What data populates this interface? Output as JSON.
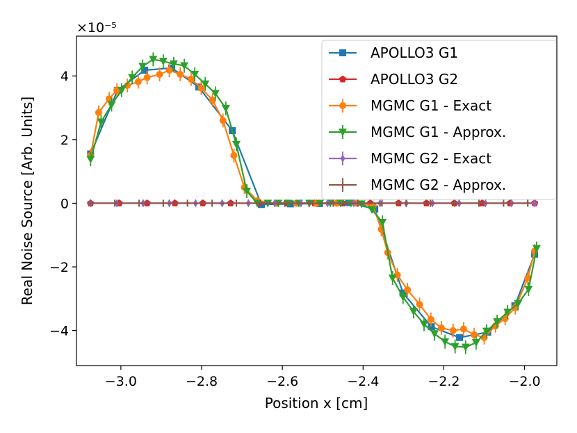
{
  "chart_data": {
    "type": "line",
    "title": "",
    "xlabel": "Position x [cm]",
    "ylabel": "Real Noise Source [Arb. Units]",
    "xlim": [
      -3.11,
      -1.92
    ],
    "ylim": [
      -5.1,
      5.25
    ],
    "xticks": [
      -3.0,
      -2.8,
      -2.6,
      -2.4,
      -2.2,
      -2.0
    ],
    "xtick_labels": [
      "−3.0",
      "−2.8",
      "−2.6",
      "−2.4",
      "−2.2",
      "−2.0"
    ],
    "yticks": [
      -4,
      -2,
      0,
      2,
      4
    ],
    "ytick_labels": [
      "−4",
      "−2",
      "0",
      "2",
      "4"
    ],
    "y_scale_label": "×10⁻⁵",
    "grid": false,
    "legend_position": "top-right",
    "series": [
      {
        "name": "APOLLO3 G1",
        "color": "#1f77b4",
        "marker": "square",
        "x": [
          -3.075,
          -3.008,
          -2.941,
          -2.874,
          -2.807,
          -2.724,
          -2.652,
          -2.58,
          -2.508,
          -2.436,
          -2.371,
          -2.301,
          -2.231,
          -2.161,
          -2.091,
          -2.024,
          -1.975
        ],
        "y": [
          1.55,
          3.55,
          4.18,
          4.25,
          3.65,
          2.28,
          -0.04,
          -0.02,
          -0.01,
          0.02,
          -0.18,
          -2.82,
          -3.88,
          -4.22,
          -4.05,
          -3.22,
          -1.6
        ]
      },
      {
        "name": "APOLLO3 G2",
        "color": "#d62728",
        "marker": "pentagon",
        "x": [
          -3.075,
          -3.004,
          -2.935,
          -2.866,
          -2.797,
          -2.728,
          -2.658,
          -2.589,
          -2.52,
          -2.451,
          -2.382,
          -2.312,
          -2.243,
          -2.174,
          -2.105,
          -2.036,
          -1.975
        ],
        "y": [
          0,
          0,
          0,
          0,
          0,
          0,
          0,
          0,
          0,
          0,
          0,
          0,
          0,
          0,
          0,
          0,
          0
        ]
      },
      {
        "name": "MGMC G1 - Exact",
        "color": "#ff7f0e",
        "marker": "circle",
        "x": [
          -3.075,
          -3.055,
          -3.029,
          -3.01,
          -2.984,
          -2.957,
          -2.935,
          -2.904,
          -2.88,
          -2.853,
          -2.826,
          -2.801,
          -2.773,
          -2.747,
          -2.72,
          -2.694,
          -2.662,
          -2.615,
          -2.565,
          -2.515,
          -2.465,
          -2.415,
          -2.375,
          -2.355,
          -2.339,
          -2.315,
          -2.29,
          -2.26,
          -2.232,
          -2.206,
          -2.177,
          -2.151,
          -2.125,
          -2.1,
          -2.072,
          -2.048,
          -2.023,
          -1.992,
          -1.975
        ],
        "y": [
          1.5,
          2.85,
          3.28,
          3.55,
          3.7,
          3.82,
          3.95,
          4.05,
          4.18,
          4.05,
          3.9,
          3.62,
          3.24,
          2.6,
          1.5,
          0.5,
          0.08,
          0.0,
          0.0,
          0.0,
          0.0,
          0.0,
          -0.08,
          -0.82,
          -1.55,
          -2.25,
          -2.72,
          -3.18,
          -3.65,
          -3.92,
          -4.0,
          -3.95,
          -4.13,
          -4.22,
          -3.85,
          -3.62,
          -3.28,
          -2.35,
          -1.5
        ]
      },
      {
        "name": "MGMC G1 - Approx.",
        "color": "#2ca02c",
        "marker": "triangle-down",
        "x": [
          -3.075,
          -3.049,
          -3.023,
          -2.998,
          -2.972,
          -2.946,
          -2.92,
          -2.895,
          -2.869,
          -2.843,
          -2.817,
          -2.791,
          -2.766,
          -2.74,
          -2.714,
          -2.688,
          -2.662,
          -2.636,
          -2.61,
          -2.585,
          -2.559,
          -2.533,
          -2.507,
          -2.481,
          -2.456,
          -2.43,
          -2.404,
          -2.378,
          -2.352,
          -2.327,
          -2.301,
          -2.275,
          -2.249,
          -2.223,
          -2.197,
          -2.172,
          -2.146,
          -2.12,
          -2.094,
          -2.068,
          -2.042,
          -2.016,
          -1.99,
          -1.97
        ],
        "y": [
          1.38,
          2.55,
          3.1,
          3.55,
          3.95,
          4.3,
          4.52,
          4.46,
          4.38,
          4.32,
          4.05,
          3.75,
          3.45,
          2.98,
          1.85,
          0.38,
          0.0,
          0.0,
          0.0,
          0.0,
          0.0,
          0.0,
          0.0,
          0.0,
          0.0,
          0.0,
          -0.02,
          -0.2,
          -0.6,
          -2.35,
          -2.95,
          -3.4,
          -3.8,
          -4.1,
          -4.35,
          -4.5,
          -4.52,
          -4.38,
          -4.02,
          -3.72,
          -3.42,
          -3.15,
          -2.7,
          -1.42
        ]
      },
      {
        "name": "MGMC G2 - Exact",
        "color": "#9467bd",
        "marker": "thin-diamond",
        "x": [
          -3.075,
          -3.01,
          -2.945,
          -2.88,
          -2.815,
          -2.749,
          -2.684,
          -2.619,
          -2.554,
          -2.488,
          -2.423,
          -2.358,
          -2.293,
          -2.228,
          -2.162,
          -2.097,
          -2.032,
          -1.975
        ],
        "y": [
          0,
          0,
          0,
          0,
          0,
          0,
          0,
          0,
          0,
          0,
          0,
          0,
          0,
          0,
          0,
          0,
          0,
          0
        ]
      },
      {
        "name": "MGMC G2 - Approx.",
        "color": "#8c564b",
        "marker": "plus",
        "x": [
          -3.075,
          -3.015,
          -2.955,
          -2.895,
          -2.835,
          -2.774,
          -2.714,
          -2.654,
          -2.594,
          -2.534,
          -2.474,
          -2.413,
          -2.353,
          -2.293,
          -2.233,
          -2.173,
          -2.113,
          -2.052,
          -1.992
        ],
        "y": [
          0,
          0,
          0,
          0,
          0,
          0,
          0,
          0,
          0,
          0,
          0,
          0,
          0,
          0,
          0,
          0,
          0,
          0,
          0
        ]
      }
    ]
  }
}
